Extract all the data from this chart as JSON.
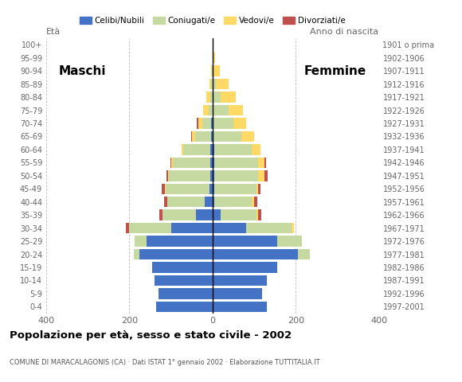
{
  "age_groups_bottom_to_top": [
    "0-4",
    "5-9",
    "10-14",
    "15-19",
    "20-24",
    "25-29",
    "30-34",
    "35-39",
    "40-44",
    "45-49",
    "50-54",
    "55-59",
    "60-64",
    "65-69",
    "70-74",
    "75-79",
    "80-84",
    "85-89",
    "90-94",
    "95-99",
    "100+"
  ],
  "birth_years_bottom_to_top": [
    "1997-2001",
    "1992-1996",
    "1987-1991",
    "1982-1986",
    "1977-1981",
    "1972-1976",
    "1967-1971",
    "1962-1966",
    "1957-1961",
    "1952-1956",
    "1947-1951",
    "1942-1946",
    "1937-1941",
    "1932-1936",
    "1927-1931",
    "1922-1926",
    "1917-1921",
    "1912-1916",
    "1907-1911",
    "1902-1906",
    "1901 o prima"
  ],
  "males_celibe": [
    135,
    130,
    140,
    145,
    175,
    158,
    100,
    40,
    18,
    8,
    5,
    6,
    5,
    3,
    4,
    0,
    0,
    0,
    0,
    0,
    0
  ],
  "males_coniugato": [
    0,
    0,
    0,
    0,
    15,
    30,
    100,
    80,
    90,
    105,
    100,
    90,
    65,
    38,
    20,
    10,
    5,
    3,
    2,
    0,
    0
  ],
  "males_vedovo": [
    0,
    0,
    0,
    0,
    0,
    0,
    0,
    0,
    0,
    1,
    2,
    3,
    5,
    8,
    10,
    12,
    10,
    5,
    2,
    0,
    0
  ],
  "males_divorziato": [
    0,
    0,
    0,
    0,
    0,
    0,
    8,
    8,
    8,
    8,
    3,
    3,
    0,
    3,
    3,
    0,
    0,
    0,
    0,
    0,
    0
  ],
  "females_celibe": [
    130,
    120,
    130,
    155,
    205,
    155,
    80,
    20,
    5,
    5,
    5,
    5,
    5,
    0,
    0,
    0,
    0,
    0,
    0,
    0,
    0
  ],
  "females_coniugato": [
    0,
    0,
    0,
    0,
    30,
    60,
    110,
    85,
    90,
    100,
    105,
    105,
    90,
    70,
    50,
    38,
    20,
    8,
    2,
    2,
    0
  ],
  "females_vedovo": [
    0,
    0,
    0,
    0,
    0,
    0,
    5,
    5,
    5,
    5,
    15,
    15,
    20,
    30,
    30,
    35,
    35,
    30,
    15,
    5,
    0
  ],
  "females_divorziato": [
    0,
    0,
    0,
    0,
    0,
    0,
    0,
    8,
    8,
    5,
    8,
    3,
    0,
    0,
    0,
    0,
    0,
    0,
    0,
    0,
    0
  ],
  "color_celibe": "#4472c4",
  "color_coniugato": "#c6d9a0",
  "color_vedovo": "#ffd966",
  "color_divorziato": "#c0504d",
  "xlim": 400,
  "title": "Popolazione per età, sesso e stato civile - 2002",
  "subtitle": "COMUNE DI MARACALAGONIS (CA) · Dati ISTAT 1° gennaio 2002 · Elaborazione TUTTITALIA.IT",
  "label_eta": "Età",
  "label_anno": "Anno di nascita",
  "label_maschi": "Maschi",
  "label_femmine": "Femmine",
  "legend_labels": [
    "Celibi/Nubili",
    "Coniugati/e",
    "Vedovi/e",
    "Divorziati/e"
  ],
  "bg_color": "#ffffff",
  "grid_color": "#bbbbbb"
}
